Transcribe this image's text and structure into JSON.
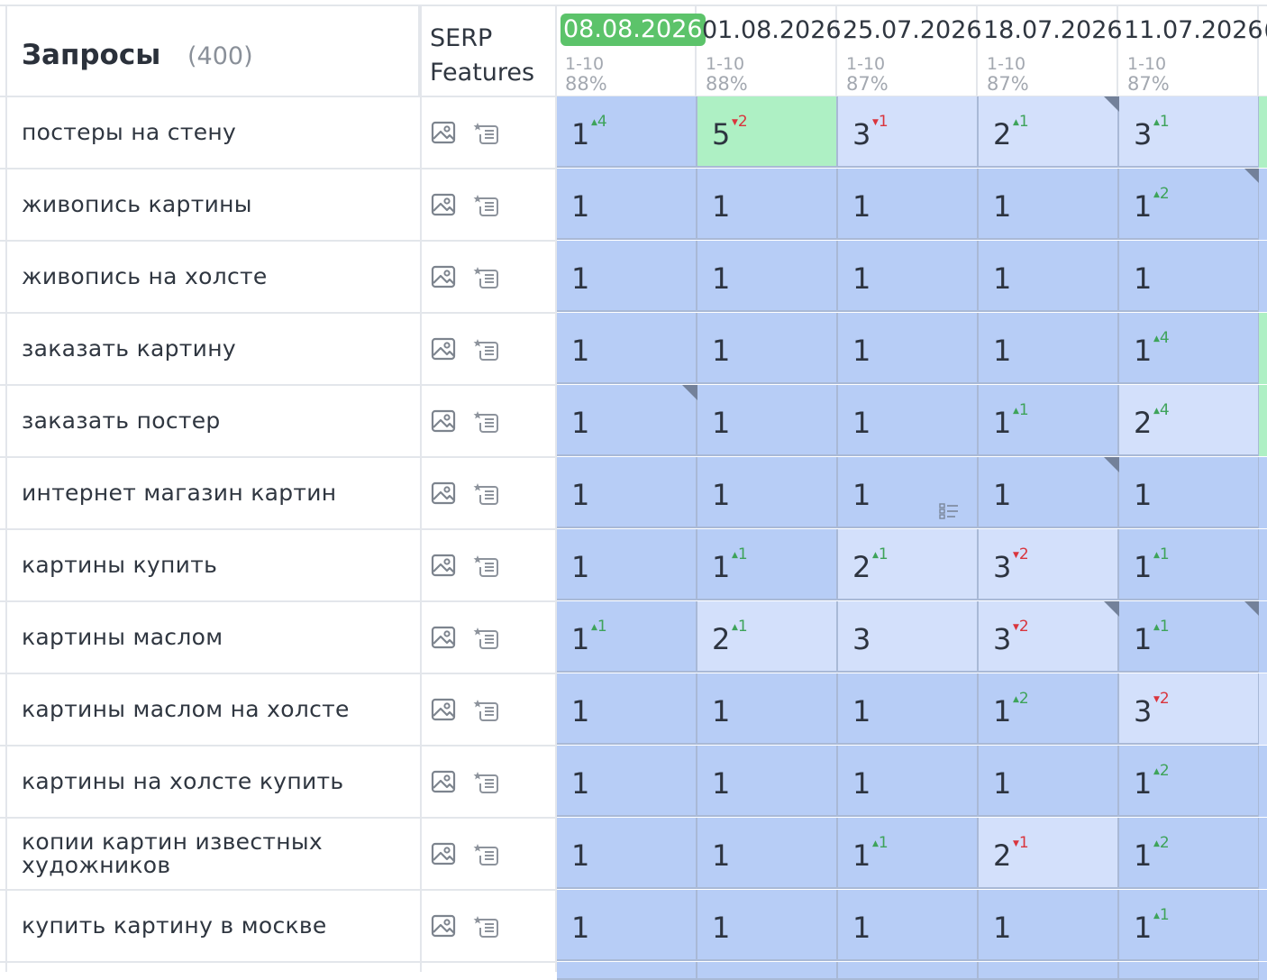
{
  "header": {
    "title": "Запросы",
    "count": "(400)",
    "serp_line1": "SERP",
    "serp_line2": "Features",
    "dates": [
      {
        "date": "08.08.2026",
        "range": "1-10",
        "pct": "88%",
        "active": true
      },
      {
        "date": "01.08.2026",
        "range": "1-10",
        "pct": "88%",
        "active": false
      },
      {
        "date": "25.07.2026",
        "range": "1-10",
        "pct": "87%",
        "active": false
      },
      {
        "date": "18.07.2026",
        "range": "1-10",
        "pct": "87%",
        "active": false
      },
      {
        "date": "11.07.2026",
        "range": "1-10",
        "pct": "87%",
        "active": false
      }
    ],
    "next_date_partial": "("
  },
  "icons": {
    "image": "image-icon",
    "snippet": "featured-snippet-icon",
    "list": "list-icon",
    "note_corner": "note-corner-icon"
  },
  "colors": {
    "dark_blue": "#b7cdf6",
    "light_blue": "#d3e0fb",
    "green": "#aef0c4",
    "active_date": "#5cc36a",
    "up": "#3ea35a",
    "down": "#d9353d"
  },
  "rows": [
    {
      "query": [
        "постеры на стену"
      ],
      "stub": "green",
      "cells": [
        {
          "v": "1",
          "d": "4",
          "dir": "up",
          "bg": "dark"
        },
        {
          "v": "5",
          "d": "2",
          "dir": "down",
          "bg": "green"
        },
        {
          "v": "3",
          "d": "1",
          "dir": "down",
          "bg": "light"
        },
        {
          "v": "2",
          "d": "1",
          "dir": "up",
          "bg": "light",
          "corner": true
        },
        {
          "v": "3",
          "d": "1",
          "dir": "up",
          "bg": "light"
        }
      ]
    },
    {
      "query": [
        "живопись картины"
      ],
      "stub": "dark",
      "cells": [
        {
          "v": "1",
          "bg": "dark"
        },
        {
          "v": "1",
          "bg": "dark"
        },
        {
          "v": "1",
          "bg": "dark"
        },
        {
          "v": "1",
          "bg": "dark"
        },
        {
          "v": "1",
          "d": "2",
          "dir": "up",
          "bg": "dark",
          "corner": true
        }
      ]
    },
    {
      "query": [
        "живопись на холсте"
      ],
      "stub": "dark",
      "cells": [
        {
          "v": "1",
          "bg": "dark"
        },
        {
          "v": "1",
          "bg": "dark"
        },
        {
          "v": "1",
          "bg": "dark"
        },
        {
          "v": "1",
          "bg": "dark"
        },
        {
          "v": "1",
          "bg": "dark"
        }
      ]
    },
    {
      "query": [
        "заказать картину"
      ],
      "stub": "green",
      "cells": [
        {
          "v": "1",
          "bg": "dark"
        },
        {
          "v": "1",
          "bg": "dark"
        },
        {
          "v": "1",
          "bg": "dark"
        },
        {
          "v": "1",
          "bg": "dark"
        },
        {
          "v": "1",
          "d": "4",
          "dir": "up",
          "bg": "dark"
        }
      ]
    },
    {
      "query": [
        "заказать постер"
      ],
      "stub": "green",
      "cells": [
        {
          "v": "1",
          "bg": "dark",
          "corner": true
        },
        {
          "v": "1",
          "bg": "dark"
        },
        {
          "v": "1",
          "bg": "dark"
        },
        {
          "v": "1",
          "d": "1",
          "dir": "up",
          "bg": "dark"
        },
        {
          "v": "2",
          "d": "4",
          "dir": "up",
          "bg": "light"
        }
      ]
    },
    {
      "query": [
        "интернет магазин картин"
      ],
      "stub": "dark",
      "cells": [
        {
          "v": "1",
          "bg": "dark"
        },
        {
          "v": "1",
          "bg": "dark"
        },
        {
          "v": "1",
          "bg": "dark",
          "list": true
        },
        {
          "v": "1",
          "bg": "dark",
          "corner": true
        },
        {
          "v": "1",
          "bg": "dark"
        }
      ]
    },
    {
      "query": [
        "картины купить"
      ],
      "stub": "dark",
      "cells": [
        {
          "v": "1",
          "bg": "dark"
        },
        {
          "v": "1",
          "d": "1",
          "dir": "up",
          "bg": "dark"
        },
        {
          "v": "2",
          "d": "1",
          "dir": "up",
          "bg": "light"
        },
        {
          "v": "3",
          "d": "2",
          "dir": "down",
          "bg": "light"
        },
        {
          "v": "1",
          "d": "1",
          "dir": "up",
          "bg": "dark"
        }
      ]
    },
    {
      "query": [
        "картины маслом"
      ],
      "stub": "dark",
      "cells": [
        {
          "v": "1",
          "d": "1",
          "dir": "up",
          "bg": "dark"
        },
        {
          "v": "2",
          "d": "1",
          "dir": "up",
          "bg": "light"
        },
        {
          "v": "3",
          "bg": "light"
        },
        {
          "v": "3",
          "d": "2",
          "dir": "down",
          "bg": "light",
          "corner": true
        },
        {
          "v": "1",
          "d": "1",
          "dir": "up",
          "bg": "dark",
          "corner": true
        }
      ]
    },
    {
      "query": [
        "картины маслом на холсте"
      ],
      "stub": "light",
      "cells": [
        {
          "v": "1",
          "bg": "dark"
        },
        {
          "v": "1",
          "bg": "dark"
        },
        {
          "v": "1",
          "bg": "dark"
        },
        {
          "v": "1",
          "d": "2",
          "dir": "up",
          "bg": "dark"
        },
        {
          "v": "3",
          "d": "2",
          "dir": "down",
          "bg": "light"
        }
      ]
    },
    {
      "query": [
        "картины на холсте купить"
      ],
      "stub": "dark",
      "cells": [
        {
          "v": "1",
          "bg": "dark"
        },
        {
          "v": "1",
          "bg": "dark"
        },
        {
          "v": "1",
          "bg": "dark"
        },
        {
          "v": "1",
          "bg": "dark"
        },
        {
          "v": "1",
          "d": "2",
          "dir": "up",
          "bg": "dark"
        }
      ]
    },
    {
      "query": [
        "копии картин известных",
        "художников"
      ],
      "stub": "dark",
      "cells": [
        {
          "v": "1",
          "bg": "dark"
        },
        {
          "v": "1",
          "bg": "dark"
        },
        {
          "v": "1",
          "d": "1",
          "dir": "up",
          "bg": "dark"
        },
        {
          "v": "2",
          "d": "1",
          "dir": "down",
          "bg": "light"
        },
        {
          "v": "1",
          "d": "2",
          "dir": "up",
          "bg": "dark"
        }
      ]
    },
    {
      "query": [
        "купить картину в москве"
      ],
      "stub": "dark",
      "cells": [
        {
          "v": "1",
          "bg": "dark"
        },
        {
          "v": "1",
          "bg": "dark"
        },
        {
          "v": "1",
          "bg": "dark"
        },
        {
          "v": "1",
          "bg": "dark"
        },
        {
          "v": "1",
          "d": "1",
          "dir": "up",
          "bg": "dark"
        }
      ]
    }
  ]
}
